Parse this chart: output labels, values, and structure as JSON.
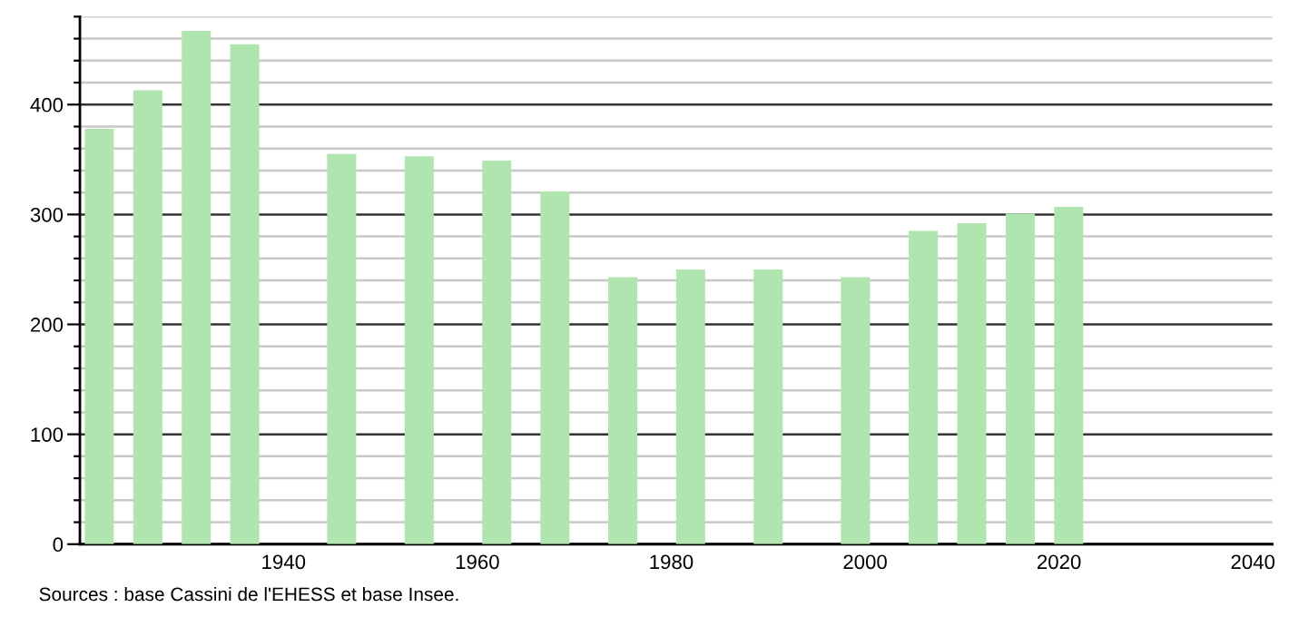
{
  "chart_data": {
    "type": "bar",
    "x": [
      1921,
      1926,
      1931,
      1936,
      1946,
      1954,
      1962,
      1968,
      1975,
      1982,
      1990,
      1999,
      2006,
      2011,
      2016,
      2021
    ],
    "values": [
      378,
      413,
      467,
      455,
      355,
      353,
      349,
      321,
      243,
      250,
      250,
      243,
      285,
      292,
      301,
      307
    ],
    "color": "#b0e5b0",
    "xlim": [
      1919,
      2042
    ],
    "xticks": [
      1940,
      1960,
      1980,
      2000,
      2020,
      2040
    ],
    "ylim": [
      0,
      480
    ],
    "yticks": [
      0,
      {
        "value": 20,
        "label": null
      },
      {
        "value": 40,
        "label": null
      },
      {
        "value": 60,
        "label": null
      },
      {
        "value": 80,
        "label": null
      },
      100,
      {
        "value": 120,
        "label": null
      },
      {
        "value": 140,
        "label": null
      },
      {
        "value": 160,
        "label": null
      },
      {
        "value": 180,
        "label": null
      },
      200,
      {
        "value": 220,
        "label": null
      },
      {
        "value": 240,
        "label": null
      },
      {
        "value": 260,
        "label": null
      },
      {
        "value": 280,
        "label": null
      },
      300,
      {
        "value": 320,
        "label": null
      },
      {
        "value": 340,
        "label": null
      },
      {
        "value": 360,
        "label": null
      },
      {
        "value": 380,
        "label": null
      },
      400,
      {
        "value": 420,
        "label": null
      },
      {
        "value": 440,
        "label": null
      },
      {
        "value": 460,
        "label": null
      },
      {
        "value": 480,
        "label": null
      }
    ],
    "grid": "y",
    "annotations": [
      "Sources : base Cassini de l'EHESS et base Insee."
    ]
  }
}
